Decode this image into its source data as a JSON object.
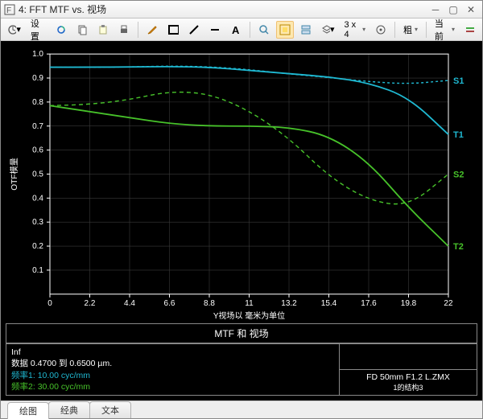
{
  "window": {
    "title": "4: FFT MTF vs. 视场",
    "icon_label": "F"
  },
  "toolbar": {
    "settings_label": "设置",
    "grid_label": "3 x 4",
    "thick_label": "粗",
    "current_label": "当前"
  },
  "chart": {
    "type": "line",
    "background_color": "#000000",
    "grid_color": "#3a3a3a",
    "axis_color": "#ffffff",
    "text_color": "#ffffff",
    "ylim": [
      0,
      1.0
    ],
    "xlim": [
      0,
      22
    ],
    "ytick_step": 0.1,
    "xticks": [
      0,
      2.2,
      4.4,
      6.6,
      8.8,
      11,
      13.2,
      15.4,
      17.6,
      19.8,
      22
    ],
    "xlabel": "Y视场以 毫米为单位",
    "ylabel": "OTF模量",
    "series": [
      {
        "id": "S1",
        "label": "S1",
        "color": "#1fb8d1",
        "dash": "3,3",
        "width": 1.4,
        "points": [
          [
            0,
            0.945
          ],
          [
            2.2,
            0.945
          ],
          [
            4.4,
            0.946
          ],
          [
            6.6,
            0.95
          ],
          [
            8.8,
            0.947
          ],
          [
            11,
            0.935
          ],
          [
            13.2,
            0.917
          ],
          [
            15.4,
            0.902
          ],
          [
            17.6,
            0.885
          ],
          [
            19.8,
            0.875
          ],
          [
            22,
            0.89
          ]
        ]
      },
      {
        "id": "T1",
        "label": "T1",
        "color": "#1fb8d1",
        "dash": "",
        "width": 1.8,
        "points": [
          [
            0,
            0.945
          ],
          [
            2.2,
            0.945
          ],
          [
            4.4,
            0.946
          ],
          [
            6.6,
            0.948
          ],
          [
            8.8,
            0.945
          ],
          [
            11,
            0.932
          ],
          [
            13.2,
            0.918
          ],
          [
            15.4,
            0.905
          ],
          [
            17.6,
            0.88
          ],
          [
            19.8,
            0.82
          ],
          [
            22,
            0.665
          ]
        ]
      },
      {
        "id": "S2",
        "label": "S2",
        "color": "#47c22a",
        "dash": "5,4",
        "width": 1.4,
        "points": [
          [
            0,
            0.785
          ],
          [
            2.2,
            0.79
          ],
          [
            4.4,
            0.81
          ],
          [
            6.6,
            0.845
          ],
          [
            8.8,
            0.835
          ],
          [
            11,
            0.765
          ],
          [
            13.2,
            0.65
          ],
          [
            15.4,
            0.49
          ],
          [
            17.6,
            0.39
          ],
          [
            19.8,
            0.365
          ],
          [
            22,
            0.5
          ]
        ]
      },
      {
        "id": "T2",
        "label": "T2",
        "color": "#47c22a",
        "dash": "",
        "width": 1.8,
        "points": [
          [
            0,
            0.785
          ],
          [
            2.2,
            0.76
          ],
          [
            4.4,
            0.735
          ],
          [
            6.6,
            0.71
          ],
          [
            8.8,
            0.7
          ],
          [
            11,
            0.7
          ],
          [
            13.2,
            0.695
          ],
          [
            15.4,
            0.66
          ],
          [
            17.6,
            0.55
          ],
          [
            19.8,
            0.36
          ],
          [
            22,
            0.2
          ]
        ]
      }
    ]
  },
  "info": {
    "title": "MTF 和 视场",
    "left_line1": "Inf",
    "left_line2": "数据 0.4700 到 0.6500 µm.",
    "left_line3_label": "频率1:",
    "left_line3_value": "10.00 cyc/mm",
    "left_line3_color": "#1fb8d1",
    "left_line4_label": "频率2:",
    "left_line4_value": "30.00 cyc/mm",
    "left_line4_color": "#47c22a",
    "right_top": "FD 50mm F1.2 L.ZMX",
    "right_bottom": "1的结构3"
  },
  "tabs": {
    "items": [
      "绘图",
      "经典",
      "文本"
    ],
    "active": 0
  }
}
